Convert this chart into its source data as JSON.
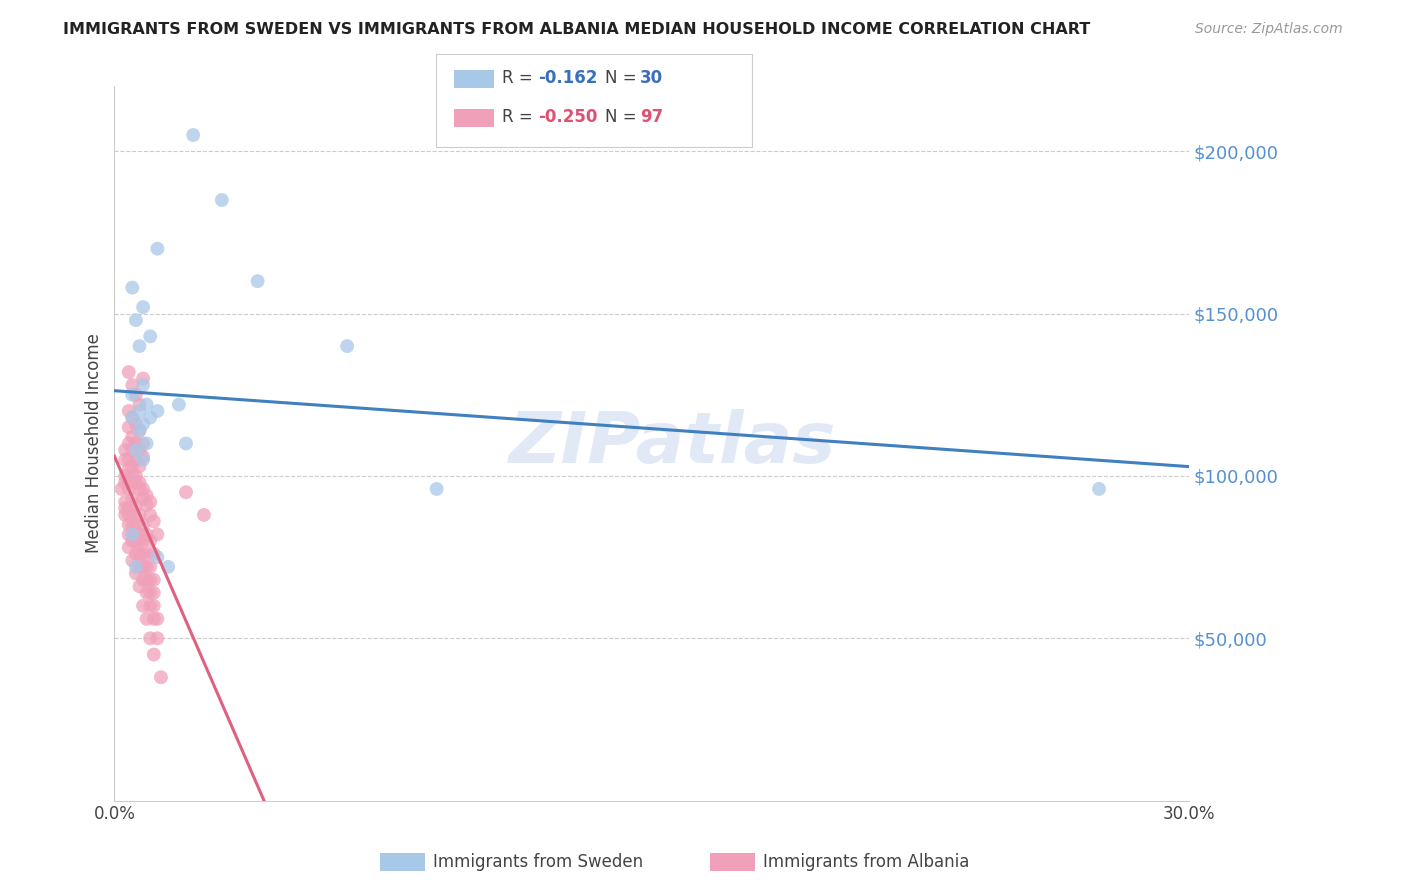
{
  "title": "IMMIGRANTS FROM SWEDEN VS IMMIGRANTS FROM ALBANIA MEDIAN HOUSEHOLD INCOME CORRELATION CHART",
  "source": "Source: ZipAtlas.com",
  "ylabel": "Median Household Income",
  "watermark": "ZIPatlas",
  "ylim": [
    0,
    220000
  ],
  "xlim": [
    0,
    0.3
  ],
  "sweden_color": "#a8c8e8",
  "albania_color": "#f0a0b8",
  "sweden_line_color": "#4080c0",
  "albania_line_color": "#e06080",
  "sweden_R": -0.162,
  "sweden_N": 30,
  "albania_R": -0.25,
  "albania_N": 97,
  "legend_label_sweden": "Immigrants from Sweden",
  "legend_label_albania": "Immigrants from Albania",
  "sweden_scatter_x": [
    0.022,
    0.03,
    0.012,
    0.04,
    0.005,
    0.008,
    0.006,
    0.01,
    0.007,
    0.065,
    0.008,
    0.005,
    0.009,
    0.012,
    0.007,
    0.01,
    0.008,
    0.018,
    0.005,
    0.007,
    0.009,
    0.02,
    0.006,
    0.008,
    0.006,
    0.09,
    0.005,
    0.012,
    0.015,
    0.275
  ],
  "sweden_scatter_y": [
    205000,
    185000,
    170000,
    160000,
    158000,
    152000,
    148000,
    143000,
    140000,
    140000,
    128000,
    125000,
    122000,
    120000,
    120000,
    118000,
    116000,
    122000,
    118000,
    114000,
    110000,
    110000,
    108000,
    105000,
    72000,
    96000,
    82000,
    75000,
    72000,
    96000
  ],
  "albania_scatter_x": [
    0.004,
    0.005,
    0.006,
    0.007,
    0.008,
    0.004,
    0.005,
    0.006,
    0.007,
    0.008,
    0.004,
    0.005,
    0.006,
    0.007,
    0.008,
    0.004,
    0.005,
    0.006,
    0.007,
    0.003,
    0.004,
    0.005,
    0.006,
    0.007,
    0.008,
    0.009,
    0.01,
    0.003,
    0.004,
    0.003,
    0.004,
    0.005,
    0.006,
    0.007,
    0.008,
    0.009,
    0.01,
    0.011,
    0.012,
    0.003,
    0.004,
    0.005,
    0.006,
    0.007,
    0.008,
    0.009,
    0.01,
    0.011,
    0.002,
    0.003,
    0.004,
    0.005,
    0.006,
    0.007,
    0.008,
    0.009,
    0.01,
    0.011,
    0.003,
    0.004,
    0.005,
    0.006,
    0.007,
    0.008,
    0.009,
    0.01,
    0.011,
    0.003,
    0.004,
    0.005,
    0.006,
    0.007,
    0.008,
    0.009,
    0.01,
    0.011,
    0.012,
    0.004,
    0.005,
    0.006,
    0.007,
    0.008,
    0.009,
    0.01,
    0.011,
    0.012,
    0.004,
    0.005,
    0.006,
    0.007,
    0.008,
    0.009,
    0.01,
    0.011,
    0.013,
    0.02,
    0.025
  ],
  "albania_scatter_y": [
    132000,
    128000,
    125000,
    122000,
    130000,
    120000,
    118000,
    116000,
    114000,
    110000,
    115000,
    112000,
    110000,
    108000,
    106000,
    110000,
    108000,
    105000,
    103000,
    108000,
    105000,
    103000,
    100000,
    98000,
    96000,
    94000,
    92000,
    100000,
    98000,
    105000,
    102000,
    100000,
    98000,
    96000,
    93000,
    91000,
    88000,
    86000,
    82000,
    98000,
    96000,
    93000,
    91000,
    88000,
    85000,
    82000,
    80000,
    76000,
    96000,
    92000,
    90000,
    88000,
    85000,
    82000,
    80000,
    76000,
    72000,
    68000,
    90000,
    88000,
    85000,
    82000,
    80000,
    76000,
    72000,
    68000,
    64000,
    88000,
    85000,
    82000,
    80000,
    76000,
    72000,
    68000,
    64000,
    60000,
    56000,
    82000,
    80000,
    76000,
    72000,
    68000,
    64000,
    60000,
    56000,
    50000,
    78000,
    74000,
    70000,
    66000,
    60000,
    56000,
    50000,
    45000,
    38000,
    95000,
    88000
  ],
  "ytick_values": [
    50000,
    100000,
    150000,
    200000
  ],
  "ytick_labels": [
    "$50,000",
    "$100,000",
    "$150,000",
    "$200,000"
  ]
}
